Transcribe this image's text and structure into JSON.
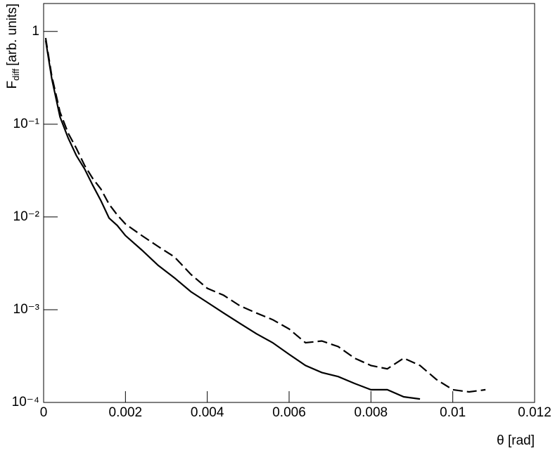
{
  "chart_data": {
    "type": "line",
    "xlabel": "θ [rad]",
    "ylabel": {
      "main": "F",
      "sub": "diff",
      "unit": "[arb. units]"
    },
    "log_y": true,
    "xlim": [
      0,
      0.012
    ],
    "xticks": [
      0,
      0.002,
      0.004,
      0.006,
      0.008,
      0.01,
      0.012
    ],
    "ylim": [
      0.0001,
      2
    ],
    "yticks": [
      {
        "value": 0.0001,
        "label": "10⁻⁴"
      },
      {
        "value": 0.001,
        "label": "10⁻³"
      },
      {
        "value": 0.01,
        "label": "10⁻²"
      },
      {
        "value": 0.1,
        "label": "10⁻¹"
      },
      1
    ],
    "series": [
      {
        "color": "#000000",
        "style": "solid",
        "x": [
          5e-05,
          0.0002,
          0.0004,
          0.0006,
          0.0008,
          0.001,
          0.0012,
          0.0014,
          0.0016,
          0.0018,
          0.002,
          0.0024,
          0.0028,
          0.0032,
          0.0036,
          0.004,
          0.0044,
          0.0048,
          0.0052,
          0.0056,
          0.006,
          0.0064,
          0.0068,
          0.0072,
          0.0076,
          0.008,
          0.0084,
          0.0088,
          0.0092
        ],
        "values": [
          0.8,
          0.31,
          0.12,
          0.071,
          0.046,
          0.033,
          0.022,
          0.015,
          0.0097,
          0.0081,
          0.0063,
          0.0044,
          0.003,
          0.0022,
          0.00156,
          0.0012,
          0.00092,
          0.00071,
          0.00055,
          0.00044,
          0.00033,
          0.00025,
          0.00021,
          0.00019,
          0.00016,
          0.000137,
          0.000137,
          0.000115,
          0.000109
        ]
      },
      {
        "color": "#000000",
        "style": "dashed",
        "x": [
          5e-05,
          0.0002,
          0.0004,
          0.0006,
          0.0008,
          0.001,
          0.0012,
          0.0014,
          0.0016,
          0.0018,
          0.002,
          0.0024,
          0.0028,
          0.0032,
          0.0036,
          0.004,
          0.0044,
          0.0048,
          0.0052,
          0.0056,
          0.006,
          0.0064,
          0.0068,
          0.0072,
          0.0076,
          0.008,
          0.0084,
          0.0088,
          0.0092,
          0.0096,
          0.01,
          0.0104,
          0.0108
        ],
        "values": [
          0.85,
          0.33,
          0.135,
          0.08,
          0.055,
          0.036,
          0.026,
          0.02,
          0.0137,
          0.0105,
          0.0084,
          0.0063,
          0.0048,
          0.0037,
          0.0024,
          0.0017,
          0.00143,
          0.0011,
          0.00092,
          0.00078,
          0.00062,
          0.00044,
          0.00046,
          0.0004,
          0.0003,
          0.00025,
          0.00023,
          0.0003,
          0.00025,
          0.000177,
          0.000137,
          0.00013,
          0.000137
        ]
      }
    ]
  }
}
